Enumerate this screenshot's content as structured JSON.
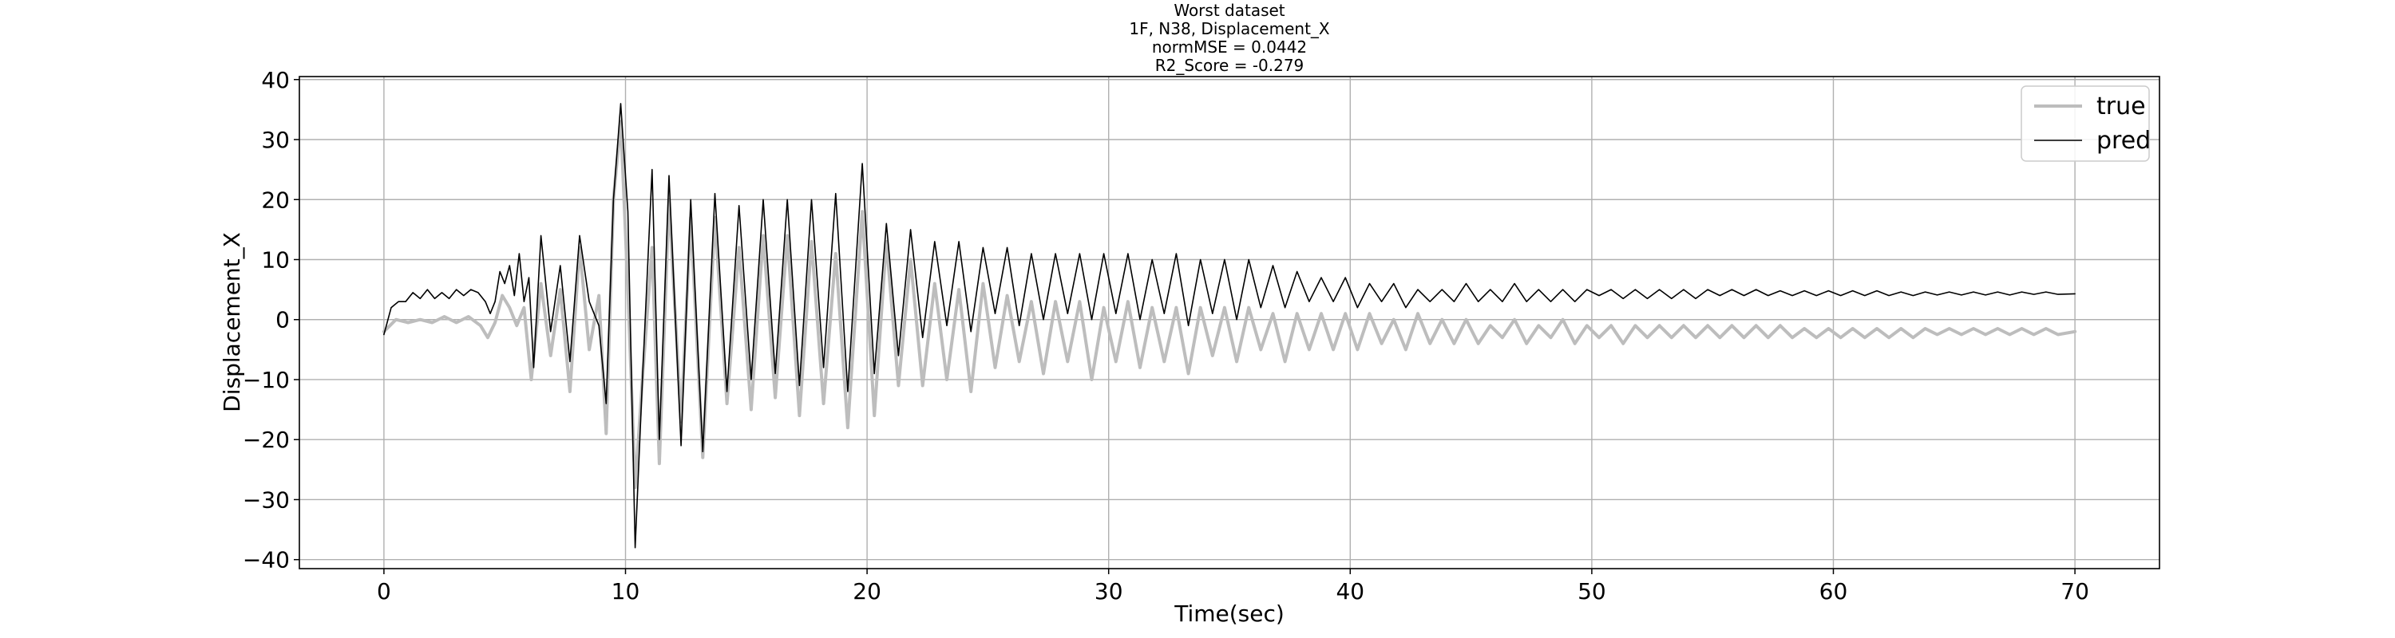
{
  "chart_data": {
    "type": "line",
    "title_lines": [
      "Worst dataset",
      "1F, N38, Displacement_X",
      "normMSE = 0.0442",
      "R2_Score = -0.279"
    ],
    "xlabel": "Time(sec)",
    "ylabel": "Displacement_X",
    "xlim": [
      -3.5,
      73.5
    ],
    "ylim": [
      -41.5,
      40.5
    ],
    "xticks": [
      0,
      10,
      20,
      30,
      40,
      50,
      60,
      70
    ],
    "yticks": [
      -40,
      -30,
      -20,
      -10,
      0,
      10,
      20,
      30,
      40
    ],
    "grid": true,
    "legend_position": "top-right",
    "series": [
      {
        "name": "true",
        "color": "#bdbdbd",
        "points": [
          [
            0,
            -2
          ],
          [
            0.5,
            0
          ],
          [
            1,
            -0.5
          ],
          [
            1.5,
            0
          ],
          [
            2,
            -0.5
          ],
          [
            2.5,
            0.5
          ],
          [
            3,
            -0.5
          ],
          [
            3.5,
            0.5
          ],
          [
            4,
            -1
          ],
          [
            4.3,
            -3
          ],
          [
            4.6,
            -0.5
          ],
          [
            4.9,
            4
          ],
          [
            5.2,
            2
          ],
          [
            5.5,
            -1
          ],
          [
            5.8,
            2
          ],
          [
            6.1,
            -10
          ],
          [
            6.5,
            6
          ],
          [
            6.9,
            -6
          ],
          [
            7.3,
            5
          ],
          [
            7.7,
            -12
          ],
          [
            8.1,
            12
          ],
          [
            8.5,
            -5
          ],
          [
            8.9,
            4
          ],
          [
            9.2,
            -19
          ],
          [
            9.5,
            20
          ],
          [
            9.8,
            33
          ],
          [
            10.1,
            5
          ],
          [
            10.4,
            -28
          ],
          [
            10.7,
            -10
          ],
          [
            11.1,
            12
          ],
          [
            11.4,
            -24
          ],
          [
            11.8,
            20
          ],
          [
            12.3,
            -17
          ],
          [
            12.7,
            17
          ],
          [
            13.2,
            -23
          ],
          [
            13.7,
            17
          ],
          [
            14.2,
            -14
          ],
          [
            14.7,
            12
          ],
          [
            15.2,
            -15
          ],
          [
            15.7,
            14
          ],
          [
            16.2,
            -13
          ],
          [
            16.7,
            14
          ],
          [
            17.2,
            -16
          ],
          [
            17.7,
            13
          ],
          [
            18.2,
            -14
          ],
          [
            18.7,
            11
          ],
          [
            19.2,
            -18
          ],
          [
            19.8,
            18
          ],
          [
            20.3,
            -16
          ],
          [
            20.8,
            13
          ],
          [
            21.3,
            -11
          ],
          [
            21.8,
            10
          ],
          [
            22.3,
            -11
          ],
          [
            22.8,
            6
          ],
          [
            23.3,
            -10
          ],
          [
            23.8,
            5
          ],
          [
            24.3,
            -12
          ],
          [
            24.8,
            6
          ],
          [
            25.3,
            -8
          ],
          [
            25.8,
            4
          ],
          [
            26.3,
            -7
          ],
          [
            26.8,
            3
          ],
          [
            27.3,
            -9
          ],
          [
            27.8,
            3
          ],
          [
            28.3,
            -7
          ],
          [
            28.8,
            3
          ],
          [
            29.3,
            -10
          ],
          [
            29.8,
            2
          ],
          [
            30.3,
            -7
          ],
          [
            30.8,
            3
          ],
          [
            31.3,
            -8
          ],
          [
            31.8,
            2
          ],
          [
            32.3,
            -7
          ],
          [
            32.8,
            2
          ],
          [
            33.3,
            -9
          ],
          [
            33.8,
            2
          ],
          [
            34.3,
            -6
          ],
          [
            34.8,
            2
          ],
          [
            35.3,
            -7
          ],
          [
            35.8,
            2
          ],
          [
            36.3,
            -5
          ],
          [
            36.8,
            1
          ],
          [
            37.3,
            -7
          ],
          [
            37.8,
            1
          ],
          [
            38.3,
            -5
          ],
          [
            38.8,
            1
          ],
          [
            39.3,
            -5
          ],
          [
            39.8,
            1
          ],
          [
            40.3,
            -5
          ],
          [
            40.8,
            1
          ],
          [
            41.3,
            -4
          ],
          [
            41.8,
            0
          ],
          [
            42.3,
            -5
          ],
          [
            42.8,
            1
          ],
          [
            43.3,
            -4
          ],
          [
            43.8,
            0
          ],
          [
            44.3,
            -4
          ],
          [
            44.8,
            0
          ],
          [
            45.3,
            -4
          ],
          [
            45.8,
            -1
          ],
          [
            46.3,
            -3
          ],
          [
            46.8,
            0
          ],
          [
            47.3,
            -4
          ],
          [
            47.8,
            -1
          ],
          [
            48.3,
            -3
          ],
          [
            48.8,
            0
          ],
          [
            49.3,
            -4
          ],
          [
            49.8,
            -1
          ],
          [
            50.3,
            -3
          ],
          [
            50.8,
            -1
          ],
          [
            51.3,
            -4
          ],
          [
            51.8,
            -1
          ],
          [
            52.3,
            -3
          ],
          [
            52.8,
            -1
          ],
          [
            53.3,
            -3
          ],
          [
            53.8,
            -1
          ],
          [
            54.3,
            -3
          ],
          [
            54.8,
            -1
          ],
          [
            55.3,
            -3
          ],
          [
            55.8,
            -1
          ],
          [
            56.3,
            -3
          ],
          [
            56.8,
            -1
          ],
          [
            57.3,
            -3
          ],
          [
            57.8,
            -1
          ],
          [
            58.3,
            -3
          ],
          [
            58.8,
            -1.5
          ],
          [
            59.3,
            -3
          ],
          [
            59.8,
            -1.5
          ],
          [
            60.3,
            -3
          ],
          [
            60.8,
            -1.5
          ],
          [
            61.3,
            -3
          ],
          [
            61.8,
            -1.5
          ],
          [
            62.3,
            -3
          ],
          [
            62.8,
            -1.5
          ],
          [
            63.3,
            -3
          ],
          [
            63.8,
            -1.5
          ],
          [
            64.3,
            -2.5
          ],
          [
            64.8,
            -1.5
          ],
          [
            65.3,
            -2.5
          ],
          [
            65.8,
            -1.5
          ],
          [
            66.3,
            -2.5
          ],
          [
            66.8,
            -1.5
          ],
          [
            67.3,
            -2.5
          ],
          [
            67.8,
            -1.5
          ],
          [
            68.3,
            -2.5
          ],
          [
            68.8,
            -1.5
          ],
          [
            69.3,
            -2.5
          ],
          [
            70,
            -2
          ]
        ]
      },
      {
        "name": "pred",
        "color": "#000000",
        "points": [
          [
            0,
            -2.5
          ],
          [
            0.3,
            2
          ],
          [
            0.6,
            3
          ],
          [
            0.9,
            3
          ],
          [
            1.2,
            4.5
          ],
          [
            1.5,
            3.5
          ],
          [
            1.8,
            5
          ],
          [
            2.1,
            3.5
          ],
          [
            2.4,
            4.5
          ],
          [
            2.7,
            3.5
          ],
          [
            3,
            5
          ],
          [
            3.3,
            4
          ],
          [
            3.6,
            5
          ],
          [
            3.9,
            4.5
          ],
          [
            4.2,
            3
          ],
          [
            4.4,
            1
          ],
          [
            4.6,
            3
          ],
          [
            4.8,
            8
          ],
          [
            5.0,
            6
          ],
          [
            5.2,
            9
          ],
          [
            5.4,
            4
          ],
          [
            5.6,
            11
          ],
          [
            5.8,
            3
          ],
          [
            6.0,
            7
          ],
          [
            6.2,
            -8
          ],
          [
            6.5,
            14
          ],
          [
            6.9,
            -2
          ],
          [
            7.3,
            9
          ],
          [
            7.7,
            -7
          ],
          [
            8.1,
            14
          ],
          [
            8.5,
            3
          ],
          [
            8.9,
            -1
          ],
          [
            9.2,
            -14
          ],
          [
            9.5,
            20
          ],
          [
            9.8,
            36
          ],
          [
            10.1,
            18
          ],
          [
            10.4,
            -38
          ],
          [
            10.7,
            -10
          ],
          [
            11.1,
            25
          ],
          [
            11.4,
            -20
          ],
          [
            11.8,
            24
          ],
          [
            12.3,
            -21
          ],
          [
            12.7,
            20
          ],
          [
            13.2,
            -22
          ],
          [
            13.7,
            21
          ],
          [
            14.2,
            -12
          ],
          [
            14.7,
            19
          ],
          [
            15.2,
            -10
          ],
          [
            15.7,
            20
          ],
          [
            16.2,
            -9
          ],
          [
            16.7,
            20
          ],
          [
            17.2,
            -11
          ],
          [
            17.7,
            20
          ],
          [
            18.2,
            -8
          ],
          [
            18.7,
            21
          ],
          [
            19.2,
            -12
          ],
          [
            19.8,
            26
          ],
          [
            20.3,
            -9
          ],
          [
            20.8,
            16
          ],
          [
            21.3,
            -6
          ],
          [
            21.8,
            15
          ],
          [
            22.3,
            -3
          ],
          [
            22.8,
            13
          ],
          [
            23.3,
            -1
          ],
          [
            23.8,
            13
          ],
          [
            24.3,
            -2
          ],
          [
            24.8,
            12
          ],
          [
            25.3,
            1
          ],
          [
            25.8,
            12
          ],
          [
            26.3,
            -1
          ],
          [
            26.8,
            11
          ],
          [
            27.3,
            0
          ],
          [
            27.8,
            11
          ],
          [
            28.3,
            1
          ],
          [
            28.8,
            11
          ],
          [
            29.3,
            0
          ],
          [
            29.8,
            11
          ],
          [
            30.3,
            1
          ],
          [
            30.8,
            11
          ],
          [
            31.3,
            0
          ],
          [
            31.8,
            10
          ],
          [
            32.3,
            1
          ],
          [
            32.8,
            11
          ],
          [
            33.3,
            -1
          ],
          [
            33.8,
            10
          ],
          [
            34.3,
            1
          ],
          [
            34.8,
            10
          ],
          [
            35.3,
            0
          ],
          [
            35.8,
            10
          ],
          [
            36.3,
            2
          ],
          [
            36.8,
            9
          ],
          [
            37.3,
            2
          ],
          [
            37.8,
            8
          ],
          [
            38.3,
            3
          ],
          [
            38.8,
            7
          ],
          [
            39.3,
            3
          ],
          [
            39.8,
            7
          ],
          [
            40.3,
            2
          ],
          [
            40.8,
            6
          ],
          [
            41.3,
            3
          ],
          [
            41.8,
            6
          ],
          [
            42.3,
            2
          ],
          [
            42.8,
            5
          ],
          [
            43.3,
            3
          ],
          [
            43.8,
            5
          ],
          [
            44.3,
            3
          ],
          [
            44.8,
            6
          ],
          [
            45.3,
            3
          ],
          [
            45.8,
            5
          ],
          [
            46.3,
            3
          ],
          [
            46.8,
            6
          ],
          [
            47.3,
            3
          ],
          [
            47.8,
            5
          ],
          [
            48.3,
            3
          ],
          [
            48.8,
            5
          ],
          [
            49.3,
            3
          ],
          [
            49.8,
            5
          ],
          [
            50.3,
            4
          ],
          [
            50.8,
            5
          ],
          [
            51.3,
            3.5
          ],
          [
            51.8,
            5
          ],
          [
            52.3,
            3.5
          ],
          [
            52.8,
            5
          ],
          [
            53.3,
            3.5
          ],
          [
            53.8,
            5
          ],
          [
            54.3,
            3.5
          ],
          [
            54.8,
            5
          ],
          [
            55.3,
            4
          ],
          [
            55.8,
            5
          ],
          [
            56.3,
            4
          ],
          [
            56.8,
            5
          ],
          [
            57.3,
            4
          ],
          [
            57.8,
            4.8
          ],
          [
            58.3,
            4
          ],
          [
            58.8,
            4.8
          ],
          [
            59.3,
            4
          ],
          [
            59.8,
            4.8
          ],
          [
            60.3,
            4
          ],
          [
            60.8,
            4.8
          ],
          [
            61.3,
            4
          ],
          [
            61.8,
            4.8
          ],
          [
            62.3,
            4
          ],
          [
            62.8,
            4.6
          ],
          [
            63.3,
            4
          ],
          [
            63.8,
            4.6
          ],
          [
            64.3,
            4.1
          ],
          [
            64.8,
            4.6
          ],
          [
            65.3,
            4.1
          ],
          [
            65.8,
            4.6
          ],
          [
            66.3,
            4.1
          ],
          [
            66.8,
            4.6
          ],
          [
            67.3,
            4.1
          ],
          [
            67.8,
            4.6
          ],
          [
            68.3,
            4.2
          ],
          [
            68.8,
            4.6
          ],
          [
            69.3,
            4.2
          ],
          [
            70,
            4.3
          ]
        ]
      }
    ]
  }
}
